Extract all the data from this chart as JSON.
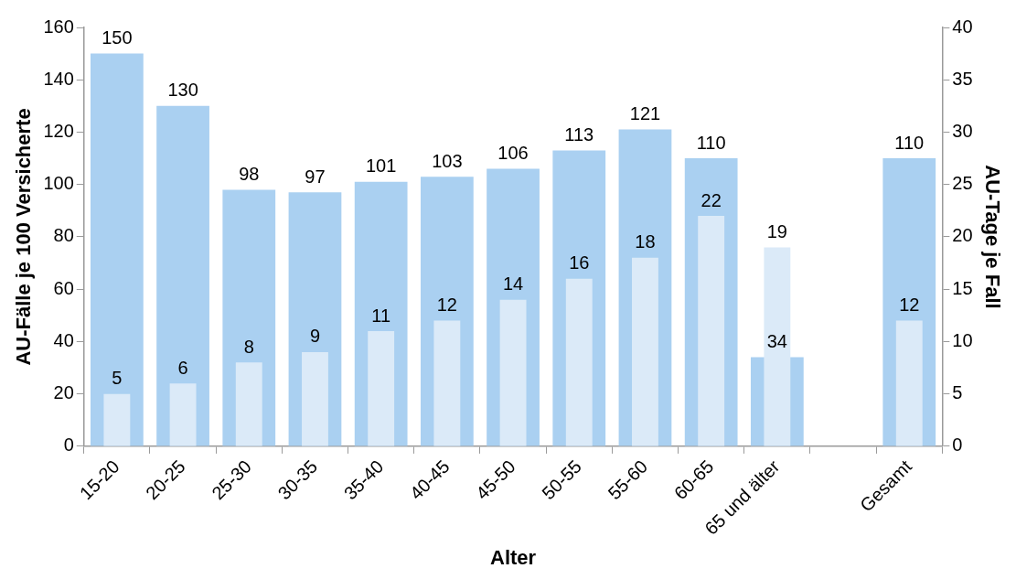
{
  "chart_data": {
    "type": "bar",
    "xlabel": "Alter",
    "ylabel": "AU-Fälle je 100 Versicherte",
    "y2label": "AU-Tage je Fall",
    "categories": [
      "15-20",
      "20-25",
      "25-30",
      "30-35",
      "35-40",
      "40-45",
      "45-50",
      "50-55",
      "55-60",
      "60-65",
      "65 und älter",
      null,
      "Gesamt"
    ],
    "series": [
      {
        "color": "#aad0f1",
        "values": [
          150,
          130,
          98,
          97,
          101,
          103,
          106,
          113,
          121,
          110,
          34,
          null,
          110
        ]
      },
      {
        "color": "#dbeaf8",
        "axis": "y2",
        "values": [
          5,
          6,
          8,
          9,
          11,
          12,
          14,
          16,
          18,
          22,
          19,
          null,
          12
        ]
      }
    ],
    "ylim": [
      0,
      160
    ],
    "yticks": [
      0,
      20,
      40,
      60,
      80,
      100,
      120,
      140,
      160
    ],
    "y2lim": [
      0,
      40
    ],
    "y2ticks": [
      0,
      5,
      10,
      15,
      20,
      25,
      30,
      35,
      40
    ],
    "grid": false,
    "legend": false,
    "data_labels": true
  }
}
